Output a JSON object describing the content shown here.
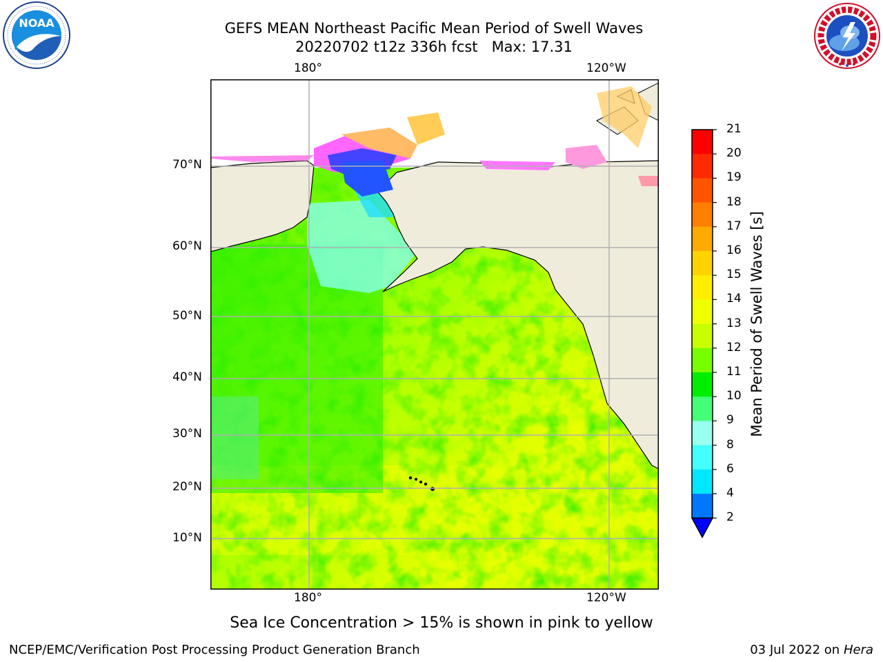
{
  "title": {
    "line1": "GEFS MEAN Northeast Pacific Mean Period of Swell Waves",
    "line2": "20220702 t12z 336h fcst   Max: 17.31"
  },
  "logos": {
    "left": {
      "name": "noaa-logo",
      "text": "NOAA",
      "ring_text": "NATIONAL OCEANIC AND ATMOSPHERIC ADMINISTRATION · U.S. DEPARTMENT OF COMMERCE"
    },
    "right": {
      "name": "nws-logo",
      "ring_text": "NATIONAL WEATHER SERVICE"
    }
  },
  "map": {
    "lon_labels": [
      "180°",
      "120°W"
    ],
    "lat_labels": [
      "70°N",
      "60°N",
      "50°N",
      "40°N",
      "30°N",
      "20°N",
      "10°N"
    ],
    "colors": {
      "land": "#efecdc",
      "ocean_green": "#33ee00",
      "ocean_yellow": "#e8ff00",
      "grid": "#b0b0b0"
    }
  },
  "colorbar": {
    "title": "Mean Period of Swell Waves [s]",
    "ticks": [
      "21",
      "20",
      "19",
      "18",
      "17",
      "16",
      "15",
      "14",
      "13",
      "12",
      "11",
      "10",
      "9",
      "8",
      "6",
      "4",
      "2"
    ],
    "colors": [
      "#ff0000",
      "#ff2a00",
      "#ff5500",
      "#ff7f00",
      "#ffaa00",
      "#ffd200",
      "#ffee00",
      "#f0ff00",
      "#c8ff00",
      "#77ff00",
      "#00ee00",
      "#44ff77",
      "#99ffee",
      "#44ffff",
      "#00e6ff",
      "#0077ff",
      "#0000ff"
    ]
  },
  "subtitle": "Sea Ice Concentration > 15% is shown in pink to yellow",
  "footer": {
    "left": "NCEP/EMC/Verification Post Processing Product Generation Branch",
    "right_prefix": "03 Jul 2022 on ",
    "right_host": "Hera"
  }
}
